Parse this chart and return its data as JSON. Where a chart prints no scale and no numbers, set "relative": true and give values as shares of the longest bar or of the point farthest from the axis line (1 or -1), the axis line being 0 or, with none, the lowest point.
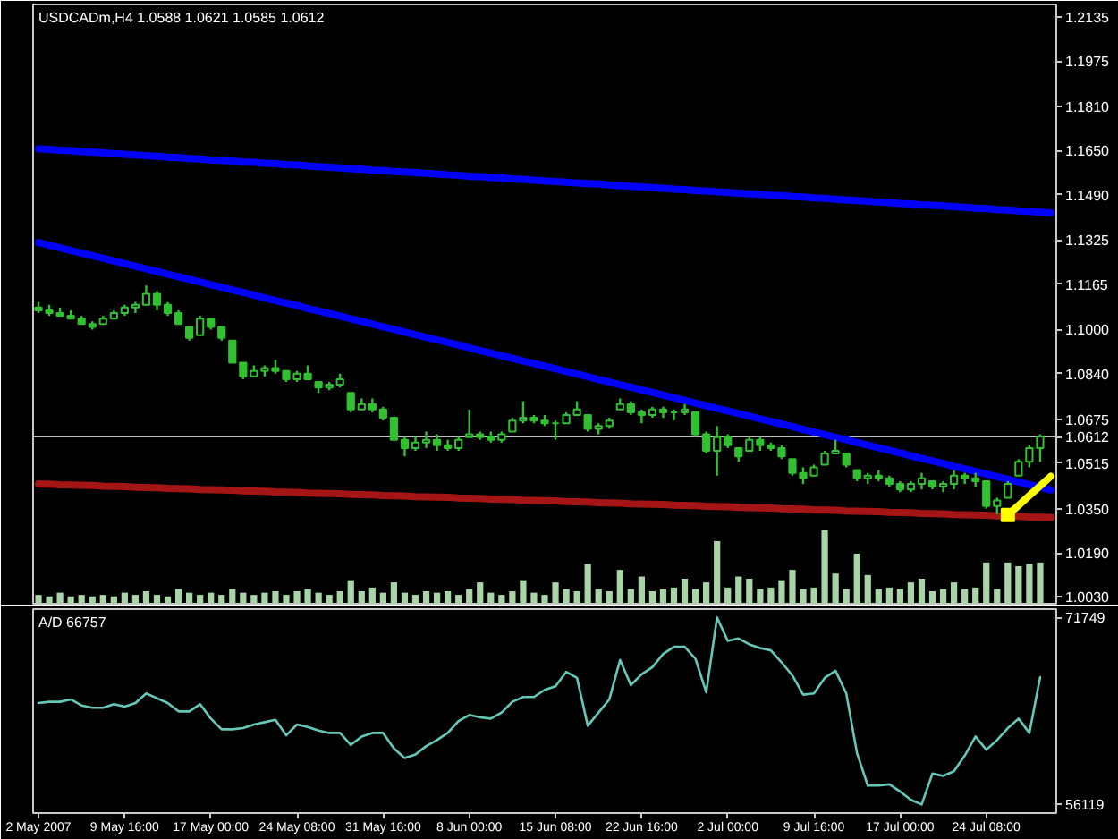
{
  "chart_data": [
    {
      "type": "candlestick",
      "title": "USDCADm,H4 1.0588 1.0621 1.0585 1.0612",
      "categories": [
        null,
        null,
        null,
        null,
        null,
        null,
        null,
        null,
        null,
        null,
        null,
        null,
        null,
        null,
        null,
        null,
        null,
        null,
        null,
        null,
        null,
        null,
        null,
        null,
        null,
        null,
        null,
        null,
        null,
        null,
        null,
        null,
        null,
        null,
        null,
        null,
        null,
        null,
        null,
        null,
        null,
        null,
        null,
        null,
        null,
        null,
        null,
        null,
        null,
        null,
        null,
        null,
        null,
        null,
        null,
        null,
        null,
        null,
        null,
        null,
        null,
        null,
        null,
        null,
        null,
        null,
        null,
        null,
        null,
        null,
        null,
        null,
        null,
        null,
        null,
        null,
        null,
        null,
        null,
        null,
        null,
        null,
        null,
        null,
        null,
        null,
        null,
        null,
        null,
        null,
        null,
        null,
        null,
        null,
        null
      ],
      "ohlc": [
        [
          1.108,
          1.11,
          1.106,
          1.107
        ],
        [
          1.107,
          1.109,
          1.105,
          1.106
        ],
        [
          1.106,
          1.108,
          1.105,
          1.105
        ],
        [
          1.105,
          1.107,
          1.104,
          1.104
        ],
        [
          1.104,
          1.105,
          1.102,
          1.102
        ],
        [
          1.102,
          1.103,
          1.1,
          1.101
        ],
        [
          1.102,
          1.105,
          1.102,
          1.104
        ],
        [
          1.104,
          1.107,
          1.104,
          1.106
        ],
        [
          1.106,
          1.109,
          1.105,
          1.108
        ],
        [
          1.108,
          1.11,
          1.106,
          1.109
        ],
        [
          1.109,
          1.116,
          1.109,
          1.113
        ],
        [
          1.113,
          1.114,
          1.107,
          1.109
        ],
        [
          1.109,
          1.11,
          1.105,
          1.106
        ],
        [
          1.106,
          1.107,
          1.102,
          1.102
        ],
        [
          1.101,
          1.101,
          1.096,
          1.097
        ],
        [
          1.098,
          1.105,
          1.098,
          1.104
        ],
        [
          1.104,
          1.104,
          1.1,
          1.101
        ],
        [
          1.101,
          1.101,
          1.096,
          1.097
        ],
        [
          1.096,
          1.096,
          1.088,
          1.088
        ],
        [
          1.088,
          1.088,
          1.082,
          1.083
        ],
        [
          1.083,
          1.087,
          1.083,
          1.085
        ],
        [
          1.085,
          1.087,
          1.083,
          1.086
        ],
        [
          1.086,
          1.089,
          1.084,
          1.085
        ],
        [
          1.085,
          1.085,
          1.081,
          1.082
        ],
        [
          1.082,
          1.085,
          1.081,
          1.084
        ],
        [
          1.084,
          1.087,
          1.082,
          1.082
        ],
        [
          1.081,
          1.081,
          1.077,
          1.079
        ],
        [
          1.079,
          1.081,
          1.078,
          1.08
        ],
        [
          1.08,
          1.084,
          1.079,
          1.082
        ],
        [
          1.077,
          1.077,
          1.07,
          1.071
        ],
        [
          1.071,
          1.075,
          1.071,
          1.073
        ],
        [
          1.073,
          1.075,
          1.07,
          1.071
        ],
        [
          1.071,
          1.072,
          1.067,
          1.068
        ],
        [
          1.068,
          1.068,
          1.06,
          1.06
        ],
        [
          1.06,
          1.061,
          1.054,
          1.057
        ],
        [
          1.057,
          1.061,
          1.056,
          1.059
        ],
        [
          1.059,
          1.063,
          1.057,
          1.06
        ],
        [
          1.06,
          1.062,
          1.056,
          1.058
        ],
        [
          1.058,
          1.06,
          1.056,
          1.057
        ],
        [
          1.057,
          1.061,
          1.056,
          1.06
        ],
        [
          1.061,
          1.071,
          1.061,
          1.062
        ],
        [
          1.062,
          1.063,
          1.06,
          1.061
        ],
        [
          1.061,
          1.063,
          1.059,
          1.06
        ],
        [
          1.06,
          1.063,
          1.059,
          1.062
        ],
        [
          1.063,
          1.068,
          1.063,
          1.067
        ],
        [
          1.067,
          1.074,
          1.066,
          1.068
        ],
        [
          1.068,
          1.069,
          1.066,
          1.067
        ],
        [
          1.067,
          1.069,
          1.065,
          1.066
        ],
        [
          1.066,
          1.067,
          1.06,
          1.066
        ],
        [
          1.066,
          1.07,
          1.066,
          1.069
        ],
        [
          1.069,
          1.074,
          1.069,
          1.071
        ],
        [
          1.069,
          1.069,
          1.063,
          1.064
        ],
        [
          1.064,
          1.066,
          1.062,
          1.065
        ],
        [
          1.065,
          1.068,
          1.064,
          1.067
        ],
        [
          1.071,
          1.075,
          1.071,
          1.073
        ],
        [
          1.073,
          1.074,
          1.069,
          1.07
        ],
        [
          1.07,
          1.071,
          1.066,
          1.069
        ],
        [
          1.069,
          1.072,
          1.068,
          1.071
        ],
        [
          1.071,
          1.072,
          1.068,
          1.07
        ],
        [
          1.07,
          1.071,
          1.067,
          1.07
        ],
        [
          1.07,
          1.073,
          1.069,
          1.071
        ],
        [
          1.07,
          1.07,
          1.061,
          1.062
        ],
        [
          1.062,
          1.063,
          1.055,
          1.056
        ],
        [
          1.056,
          1.065,
          1.047,
          1.061
        ],
        [
          1.061,
          1.062,
          1.057,
          1.058
        ],
        [
          1.057,
          1.057,
          1.052,
          1.054
        ],
        [
          1.056,
          1.061,
          1.056,
          1.06
        ],
        [
          1.06,
          1.061,
          1.056,
          1.058
        ],
        [
          1.058,
          1.059,
          1.056,
          1.057
        ],
        [
          1.057,
          1.058,
          1.053,
          1.054
        ],
        [
          1.053,
          1.053,
          1.047,
          1.048
        ],
        [
          1.048,
          1.05,
          1.044,
          1.046
        ],
        [
          1.047,
          1.051,
          1.047,
          1.05
        ],
        [
          1.051,
          1.056,
          1.051,
          1.055
        ],
        [
          1.055,
          1.06,
          1.055,
          1.056
        ],
        [
          1.055,
          1.055,
          1.05,
          1.051
        ],
        [
          1.049,
          1.049,
          1.045,
          1.046
        ],
        [
          1.046,
          1.048,
          1.044,
          1.047
        ],
        [
          1.047,
          1.049,
          1.045,
          1.046
        ],
        [
          1.046,
          1.047,
          1.043,
          1.044
        ],
        [
          1.044,
          1.045,
          1.041,
          1.042
        ],
        [
          1.042,
          1.045,
          1.041,
          1.044
        ],
        [
          1.044,
          1.048,
          1.042,
          1.046
        ],
        [
          1.045,
          1.045,
          1.042,
          1.043
        ],
        [
          1.043,
          1.045,
          1.041,
          1.044
        ],
        [
          1.044,
          1.049,
          1.042,
          1.047
        ],
        [
          1.047,
          1.048,
          1.044,
          1.046
        ],
        [
          1.046,
          1.048,
          1.043,
          1.045
        ],
        [
          1.045,
          1.045,
          1.035,
          1.036
        ],
        [
          1.036,
          1.039,
          1.033,
          1.038
        ],
        [
          1.039,
          1.045,
          1.039,
          1.044
        ],
        [
          1.047,
          1.053,
          1.047,
          1.052
        ],
        [
          1.052,
          1.058,
          1.05,
          1.057
        ],
        [
          1.057,
          1.062,
          1.052,
          1.0612
        ],
        null
      ],
      "color": "#30c030",
      "ylim": [
        1.0005,
        1.218
      ],
      "yticks": [
        {
          "value": 1.003,
          "label": "1.0030"
        },
        {
          "value": 1.019,
          "label": "1.0190"
        },
        {
          "value": 1.035,
          "label": "1.0350"
        },
        1.0515,
        1.0675,
        {
          "value": 1.084,
          "label": "1.0840"
        },
        {
          "value": 1.1,
          "label": "1.1000"
        },
        1.1165,
        1.1325,
        {
          "value": 1.149,
          "label": "1.1490"
        },
        {
          "value": 1.165,
          "label": "1.1650"
        },
        {
          "value": 1.181,
          "label": "1.1810"
        },
        1.1975,
        1.2135
      ],
      "tick_labels": "y",
      "series": [
        {
          "type": "line",
          "color": "#0000ff",
          "values": [
            1.1656,
            1.1654,
            1.1651,
            1.1649,
            1.1646,
            1.1644,
            1.1641,
            1.1639,
            1.1636,
            1.1634,
            1.1631,
            1.1629,
            1.1626,
            1.1624,
            1.1621,
            1.1619,
            1.1616,
            1.1614,
            1.1612,
            1.1609,
            1.1607,
            1.1604,
            1.1602,
            1.1599,
            1.1597,
            1.1594,
            1.1592,
            1.1589,
            1.1587,
            1.1584,
            1.1582,
            1.1579,
            1.1577,
            1.1574,
            1.1572,
            1.157,
            1.1567,
            1.1565,
            1.1562,
            1.156,
            1.1557,
            1.1555,
            1.1552,
            1.155,
            1.1547,
            1.1545,
            1.1542,
            1.154,
            1.1537,
            1.1535,
            1.1532,
            1.153,
            1.1528,
            1.1525,
            1.1523,
            1.152,
            1.1518,
            1.1515,
            1.1513,
            1.151,
            1.1508,
            1.1505,
            1.1503,
            1.15,
            1.1498,
            1.1495,
            1.1493,
            1.1491,
            1.1488,
            1.1486,
            1.1483,
            1.1481,
            1.1478,
            1.1476,
            1.1473,
            1.1471,
            1.1468,
            1.1466,
            1.1463,
            1.1461,
            1.1458,
            1.1456,
            1.1453,
            1.1451,
            1.1449,
            1.1446,
            1.1444,
            1.1441,
            1.1439,
            1.1436,
            1.1434,
            1.1431,
            1.1429,
            1.1426,
            1.1424
          ]
        },
        {
          "type": "line",
          "color": "#0000ff",
          "values": [
            1.1316,
            1.1306,
            1.1297,
            1.1287,
            1.1278,
            1.1268,
            1.1259,
            1.1249,
            1.124,
            1.123,
            1.122,
            1.1211,
            1.1201,
            1.1192,
            1.1182,
            1.1173,
            1.1163,
            1.1154,
            1.1144,
            1.1135,
            1.1125,
            1.1115,
            1.1106,
            1.1096,
            1.1087,
            1.1077,
            1.1068,
            1.1058,
            1.1049,
            1.1039,
            1.103,
            1.102,
            1.101,
            1.1001,
            1.0991,
            1.0982,
            1.0972,
            1.0963,
            1.0953,
            1.0944,
            1.0934,
            1.0924,
            1.0915,
            1.0905,
            1.0896,
            1.0886,
            1.0877,
            1.0867,
            1.0858,
            1.0848,
            1.0839,
            1.0829,
            1.0819,
            1.081,
            1.08,
            1.0791,
            1.0781,
            1.0772,
            1.0762,
            1.0753,
            1.0743,
            1.0733,
            1.0724,
            1.0714,
            1.0705,
            1.0695,
            1.0686,
            1.0676,
            1.0667,
            1.0657,
            1.0648,
            1.0638,
            1.0628,
            1.0619,
            1.0609,
            1.06,
            1.059,
            1.0581,
            1.0571,
            1.0562,
            1.0552,
            1.0542,
            1.0533,
            1.0523,
            1.0514,
            1.0504,
            1.0495,
            1.0485,
            1.0476,
            1.0466,
            1.0457,
            1.0447,
            1.0437,
            1.0428,
            1.0418
          ]
        },
        {
          "type": "line",
          "color": "#a51515",
          "values": [
            1.044,
            1.0439,
            1.0437,
            1.0436,
            1.0435,
            1.0434,
            1.0432,
            1.0431,
            1.043,
            1.0428,
            1.0427,
            1.0426,
            1.0424,
            1.0423,
            1.0422,
            1.042,
            1.0419,
            1.0418,
            1.0417,
            1.0415,
            1.0414,
            1.0413,
            1.0411,
            1.041,
            1.0409,
            1.0407,
            1.0406,
            1.0405,
            1.0404,
            1.0402,
            1.0401,
            1.04,
            1.0398,
            1.0397,
            1.0396,
            1.0394,
            1.0393,
            1.0392,
            1.0391,
            1.0389,
            1.0388,
            1.0387,
            1.0385,
            1.0384,
            1.0383,
            1.0381,
            1.038,
            1.0379,
            1.0378,
            1.0376,
            1.0375,
            1.0374,
            1.0372,
            1.0371,
            1.037,
            1.0368,
            1.0367,
            1.0366,
            1.0365,
            1.0363,
            1.0362,
            1.0361,
            1.0359,
            1.0358,
            1.0357,
            1.0355,
            1.0354,
            1.0353,
            1.0352,
            1.035,
            1.0349,
            1.0348,
            1.0346,
            1.0345,
            1.0344,
            1.0342,
            1.0341,
            1.034,
            1.0339,
            1.0337,
            1.0336,
            1.0335,
            1.0333,
            1.0332,
            1.0331,
            1.0329,
            1.0328,
            1.0327,
            1.0326,
            1.0324,
            1.0323,
            1.0322,
            1.032,
            1.0319,
            1.0318
          ]
        },
        {
          "type": "line",
          "color": "#ffff00",
          "values": [
            null,
            null,
            null,
            null,
            null,
            null,
            null,
            null,
            null,
            null,
            null,
            null,
            null,
            null,
            null,
            null,
            null,
            null,
            null,
            null,
            null,
            null,
            null,
            null,
            null,
            null,
            null,
            null,
            null,
            null,
            null,
            null,
            null,
            null,
            null,
            null,
            null,
            null,
            null,
            null,
            null,
            null,
            null,
            null,
            null,
            null,
            null,
            null,
            null,
            null,
            null,
            null,
            null,
            null,
            null,
            null,
            null,
            null,
            null,
            null,
            null,
            null,
            null,
            null,
            null,
            null,
            null,
            null,
            null,
            null,
            null,
            null,
            null,
            null,
            null,
            null,
            null,
            null,
            null,
            null,
            null,
            null,
            null,
            null,
            null,
            null,
            null,
            null,
            null,
            null,
            1.0327,
            1.0362,
            1.0398,
            1.0433,
            1.0468
          ]
        },
        {
          "type": "scatter",
          "color": "#ffff00",
          "marker": "square",
          "values": [
            null,
            null,
            null,
            null,
            null,
            null,
            null,
            null,
            null,
            null,
            null,
            null,
            null,
            null,
            null,
            null,
            null,
            null,
            null,
            null,
            null,
            null,
            null,
            null,
            null,
            null,
            null,
            null,
            null,
            null,
            null,
            null,
            null,
            null,
            null,
            null,
            null,
            null,
            null,
            null,
            null,
            null,
            null,
            null,
            null,
            null,
            null,
            null,
            null,
            null,
            null,
            null,
            null,
            null,
            null,
            null,
            null,
            null,
            null,
            null,
            null,
            null,
            null,
            null,
            null,
            null,
            null,
            null,
            null,
            null,
            null,
            null,
            null,
            null,
            null,
            null,
            null,
            null,
            null,
            null,
            null,
            null,
            null,
            null,
            null,
            null,
            null,
            null,
            null,
            null,
            1.0327,
            null,
            null,
            null,
            null
          ]
        }
      ],
      "ref_lines": [
        {
          "axis": "y",
          "value": 1.0612,
          "label": "1.0612",
          "color": "#c0c0c0"
        }
      ]
    },
    {
      "type": "bar",
      "relative": true,
      "categories": [
        null,
        null,
        null,
        null,
        null,
        null,
        null,
        null,
        null,
        null,
        null,
        null,
        null,
        null,
        null,
        null,
        null,
        null,
        null,
        null,
        null,
        null,
        null,
        null,
        null,
        null,
        null,
        null,
        null,
        null,
        null,
        null,
        null,
        null,
        null,
        null,
        null,
        null,
        null,
        null,
        null,
        null,
        null,
        null,
        null,
        null,
        null,
        null,
        null,
        null,
        null,
        null,
        null,
        null,
        null,
        null,
        null,
        null,
        null,
        null,
        null,
        null,
        null,
        null,
        null,
        null,
        null,
        null,
        null,
        null,
        null,
        null,
        null,
        null,
        null,
        null,
        null,
        null,
        null,
        null,
        null,
        null,
        null,
        null,
        null,
        null,
        null,
        null,
        null,
        null,
        null,
        null,
        null,
        null,
        null
      ],
      "values": [
        0.12,
        0.1,
        0.15,
        0.1,
        0.12,
        0.1,
        0.12,
        0.1,
        0.15,
        0.12,
        0.17,
        0.12,
        0.1,
        0.2,
        0.15,
        0.12,
        0.15,
        0.12,
        0.2,
        0.15,
        0.12,
        0.15,
        0.17,
        0.12,
        0.17,
        0.2,
        0.15,
        0.12,
        0.17,
        0.32,
        0.17,
        0.22,
        0.15,
        0.29,
        0.15,
        0.12,
        0.17,
        0.15,
        0.17,
        0.12,
        0.2,
        0.29,
        0.15,
        0.12,
        0.17,
        0.32,
        0.15,
        0.12,
        0.29,
        0.2,
        0.17,
        0.54,
        0.2,
        0.17,
        0.46,
        0.2,
        0.37,
        0.17,
        0.2,
        0.22,
        0.34,
        0.2,
        0.29,
        0.85,
        0.22,
        0.37,
        0.34,
        0.2,
        0.22,
        0.32,
        0.46,
        0.2,
        0.22,
        1,
        0.41,
        0.2,
        0.68,
        0.39,
        0.2,
        0.22,
        0.2,
        0.29,
        0.34,
        0.17,
        0.2,
        0.29,
        0.2,
        0.22,
        0.56,
        0.2,
        0.56,
        0.51,
        0.54,
        0.56,
        null
      ],
      "color": "#a8d4a8",
      "tick_labels": false
    },
    {
      "type": "line",
      "title": "A/D 66757",
      "categories": [
        "2 May 2007",
        null,
        null,
        null,
        null,
        null,
        null,
        null,
        "9 May 16:00",
        null,
        null,
        null,
        null,
        null,
        null,
        null,
        "17 May 00:00",
        null,
        null,
        null,
        null,
        null,
        null,
        null,
        "24 May 08:00",
        null,
        null,
        null,
        null,
        null,
        null,
        null,
        "31 May 16:00",
        null,
        null,
        null,
        null,
        null,
        null,
        null,
        "8 Jun 00:00",
        null,
        null,
        null,
        null,
        null,
        null,
        null,
        "15 Jun 08:00",
        null,
        null,
        null,
        null,
        null,
        null,
        null,
        "22 Jun 16:00",
        null,
        null,
        null,
        null,
        null,
        null,
        null,
        "2 Jul 00:00",
        null,
        null,
        null,
        null,
        null,
        null,
        null,
        "9 Jul 16:00",
        null,
        null,
        null,
        null,
        null,
        null,
        null,
        "17 Jul 00:00",
        null,
        null,
        null,
        null,
        null,
        null,
        null,
        "24 Jul 08:00",
        null,
        null,
        null,
        null,
        null,
        null
      ],
      "values": [
        64600,
        64700,
        64700,
        64900,
        64400,
        64200,
        64200,
        64500,
        64300,
        64600,
        65400,
        65000,
        64600,
        63900,
        63900,
        64500,
        63300,
        62400,
        62400,
        62500,
        62800,
        63000,
        63200,
        61900,
        62800,
        62600,
        62300,
        62100,
        62100,
        61100,
        61800,
        62100,
        62100,
        60800,
        60000,
        60300,
        61000,
        61500,
        62100,
        63100,
        63600,
        63400,
        63300,
        63800,
        64700,
        65100,
        65100,
        65700,
        66000,
        67200,
        66700,
        62700,
        63800,
        64900,
        68200,
        66100,
        67000,
        67600,
        68700,
        69300,
        69300,
        68300,
        65500,
        71749,
        69800,
        70000,
        69500,
        69200,
        69000,
        68000,
        66900,
        65300,
        65400,
        66700,
        67300,
        65400,
        60400,
        57700,
        57700,
        57800,
        57200,
        56500,
        56119,
        58700,
        58500,
        58900,
        60200,
        61800,
        60700,
        61500,
        62500,
        63300,
        62100,
        66757,
        null
      ],
      "color": "#66c8b8",
      "ylim": [
        55400,
        72450
      ],
      "yticks": [
        56119,
        71749
      ]
    }
  ]
}
